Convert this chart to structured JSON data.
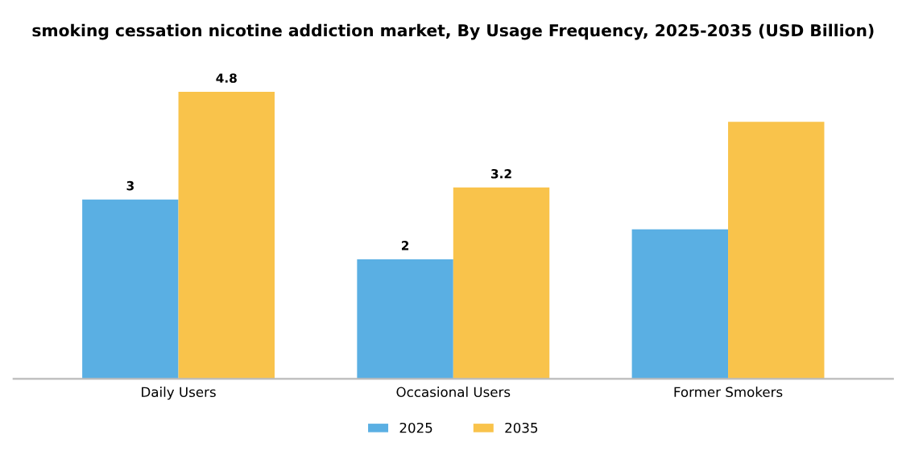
{
  "chart_data": {
    "type": "bar",
    "title": "smoking cessation nicotine addiction market, By Usage Frequency, 2025-2035 (USD Billion)",
    "categories": [
      "Daily Users",
      "Occasional Users",
      "Former Smokers"
    ],
    "series": [
      {
        "name": "2025",
        "color": "#5aafe3",
        "values": [
          3,
          2,
          2.5
        ],
        "value_labels": [
          "3",
          "2",
          null
        ]
      },
      {
        "name": "2035",
        "color": "#f9c34b",
        "values": [
          4.8,
          3.2,
          4.3
        ],
        "value_labels": [
          "4.8",
          "3.2",
          null
        ]
      }
    ],
    "legend": "bottom",
    "grid": false,
    "tick_labels": "x"
  }
}
